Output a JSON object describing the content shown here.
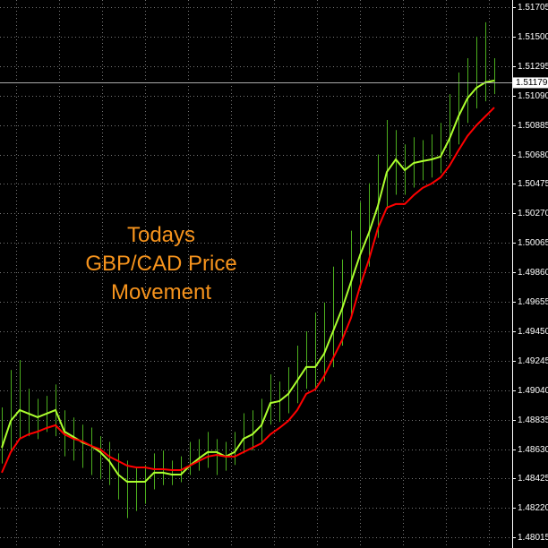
{
  "chart_data": {
    "type": "ohlc",
    "annotation": [
      "Todays",
      "GBP/CAD Price",
      "Movement"
    ],
    "ylim": [
      1.47942,
      1.51755
    ],
    "yticks": [
      1.51705,
      {
        "value": 1.515,
        "label": "1.51500"
      },
      1.51295,
      {
        "value": 1.5109,
        "label": "1.51090"
      },
      1.50885,
      {
        "value": 1.5068,
        "label": "1.50680"
      },
      1.50475,
      {
        "value": 1.5027,
        "label": "1.50270"
      },
      1.50065,
      {
        "value": 1.4986,
        "label": "1.49860"
      },
      1.49655,
      {
        "value": 1.4945,
        "label": "1.49450"
      },
      1.49245,
      {
        "value": 1.4904,
        "label": "1.49040"
      },
      1.48835,
      {
        "value": 1.4863,
        "label": "1.48630"
      },
      1.48425,
      {
        "value": 1.4822,
        "label": "1.48220"
      },
      1.48015
    ],
    "current_price": 1.51179,
    "grid": true,
    "bar_color": "#4caf1e",
    "high": [
      1.4892,
      1.4918,
      1.4925,
      1.4905,
      1.4898,
      1.49,
      1.4908,
      1.489,
      1.4885,
      1.488,
      1.4878,
      1.4872,
      1.4868,
      1.486,
      1.4855,
      1.485,
      1.4852,
      1.486,
      1.4862,
      1.4855,
      1.4858,
      1.4868,
      1.487,
      1.4875,
      1.487,
      1.4868,
      1.4875,
      1.4888,
      1.489,
      1.4898,
      1.4915,
      1.491,
      1.492,
      1.4935,
      1.4945,
      1.4958,
      1.4965,
      1.499,
      1.4995,
      1.5015,
      1.5035,
      1.5048,
      1.5068,
      1.5092,
      1.5085,
      1.5075,
      1.508,
      1.5078,
      1.5082,
      1.509,
      1.511,
      1.5125,
      1.5135,
      1.515,
      1.516,
      1.5135
    ],
    "low": [
      1.4853,
      1.4862,
      1.487,
      1.4872,
      1.487,
      1.4875,
      1.4872,
      1.4858,
      1.4855,
      1.485,
      1.4845,
      1.4842,
      1.4838,
      1.4828,
      1.4815,
      1.482,
      1.4825,
      1.4835,
      1.4838,
      1.4838,
      1.484,
      1.4845,
      1.4848,
      1.485,
      1.4845,
      1.4848,
      1.4852,
      1.486,
      1.4862,
      1.4868,
      1.488,
      1.4882,
      1.4888,
      1.4895,
      1.4905,
      1.4905,
      1.491,
      1.492,
      1.4935,
      1.4955,
      1.4975,
      1.499,
      1.501,
      1.503,
      1.504,
      1.504,
      1.5045,
      1.505,
      1.5052,
      1.5055,
      1.5065,
      1.5075,
      1.509,
      1.51,
      1.5105,
      1.511
    ],
    "series": [
      {
        "color": "#adff2f",
        "values": [
          1.4864,
          1.48827,
          1.48902,
          1.48877,
          1.48852,
          1.48877,
          1.48902,
          1.48752,
          1.48715,
          1.48677,
          1.48652,
          1.48609,
          1.48547,
          1.48453,
          1.48403,
          1.48403,
          1.48403,
          1.48466,
          1.48466,
          1.48453,
          1.48453,
          1.48515,
          1.48565,
          1.48609,
          1.48609,
          1.48578,
          1.48609,
          1.48702,
          1.48733,
          1.48796,
          1.48951,
          1.48964,
          1.49014,
          1.49107,
          1.49201,
          1.49201,
          1.49294,
          1.4945,
          1.49606,
          1.49793,
          1.49979,
          1.50135,
          1.50322,
          1.50559,
          1.50646,
          1.50571,
          1.50621,
          1.50634,
          1.50646,
          1.50665,
          1.50789,
          1.50945,
          1.5107,
          1.51144,
          1.51182,
          1.51194
        ]
      },
      {
        "color": "#ff0000",
        "values": [
          1.48466,
          1.48609,
          1.48702,
          1.48733,
          1.48752,
          1.48777,
          1.48796,
          1.48733,
          1.48702,
          1.48684,
          1.48652,
          1.48628,
          1.48578,
          1.48547,
          1.48515,
          1.48503,
          1.48503,
          1.4849,
          1.4849,
          1.48484,
          1.48484,
          1.48515,
          1.48547,
          1.48578,
          1.4859,
          1.48578,
          1.48578,
          1.48609,
          1.4864,
          1.48671,
          1.48733,
          1.48777,
          1.48827,
          1.48902,
          1.49014,
          1.49045,
          1.49138,
          1.49263,
          1.49388,
          1.49543,
          1.49761,
          1.49948,
          1.50166,
          1.5031,
          1.50335,
          1.50335,
          1.50397,
          1.50447,
          1.50478,
          1.50521,
          1.50602,
          1.50708,
          1.50808,
          1.50883,
          1.50945,
          1.51007
        ]
      }
    ]
  }
}
